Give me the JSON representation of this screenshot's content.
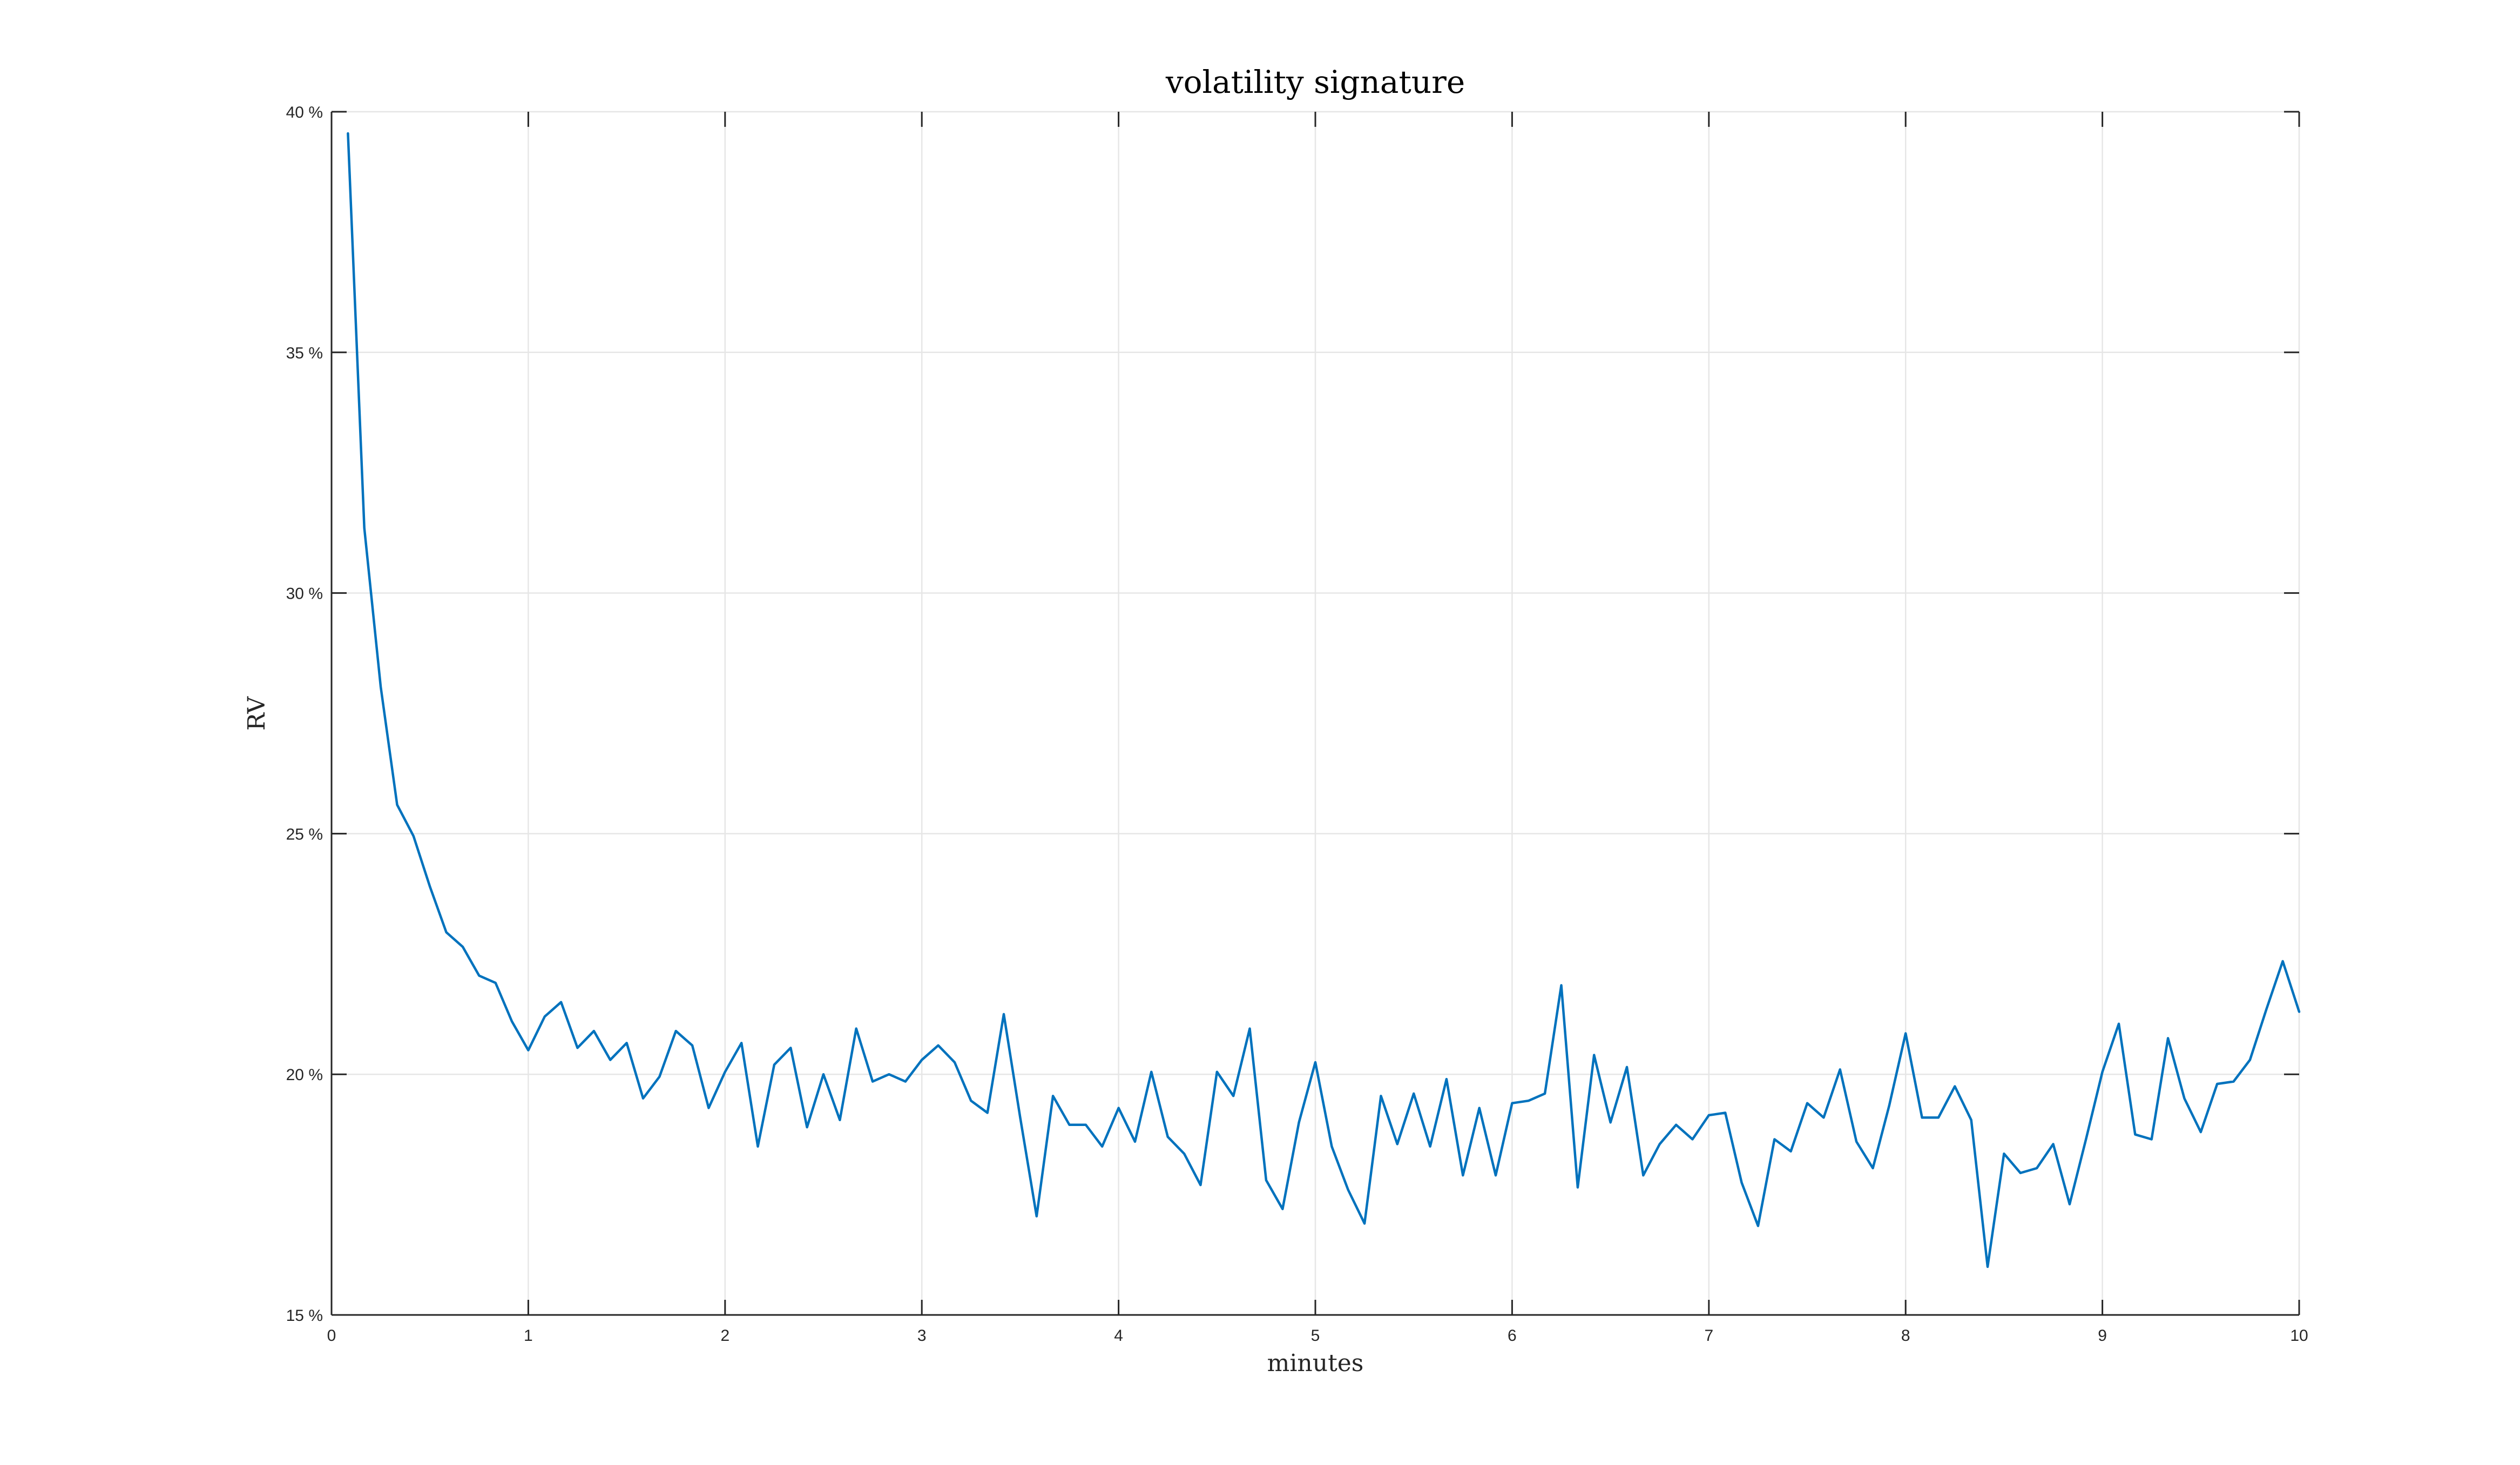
{
  "chart_data": {
    "type": "line",
    "title": "volatility signature",
    "xlabel": "minutes",
    "ylabel": "RV",
    "xlim": [
      0,
      10
    ],
    "ylim": [
      15,
      40
    ],
    "x_ticks": [
      0,
      1,
      2,
      3,
      4,
      5,
      6,
      7,
      8,
      9,
      10
    ],
    "x_tick_labels": [
      "0",
      "1",
      "2",
      "3",
      "4",
      "5",
      "6",
      "7",
      "8",
      "9",
      "10"
    ],
    "y_ticks": [
      15,
      20,
      25,
      30,
      35,
      40
    ],
    "y_tick_labels": [
      "15 %",
      "20 %",
      "25 %",
      "30 %",
      "35 %",
      "40 %"
    ],
    "grid": true,
    "series_color": "#0072BD",
    "grid_color": "#e6e6e6",
    "axis_color": "#262626",
    "series": [
      {
        "x": [
          0.0833,
          0.1667,
          0.25,
          0.3333,
          0.4167,
          0.5,
          0.5833,
          0.6667,
          0.75,
          0.8333,
          0.9167,
          1.0,
          1.0833,
          1.1667,
          1.25,
          1.3333,
          1.4167,
          1.5,
          1.5833,
          1.6667,
          1.75,
          1.8333,
          1.9167,
          2.0,
          2.0833,
          2.1667,
          2.25,
          2.3333,
          2.4167,
          2.5,
          2.5833,
          2.6667,
          2.75,
          2.8333,
          2.9167,
          3.0,
          3.0833,
          3.1667,
          3.25,
          3.3333,
          3.4167,
          3.5,
          3.5833,
          3.6667,
          3.75,
          3.8333,
          3.9167,
          4.0,
          4.0833,
          4.1667,
          4.25,
          4.3333,
          4.4167,
          4.5,
          4.5833,
          4.6667,
          4.75,
          4.8333,
          4.9167,
          5.0,
          5.0833,
          5.1667,
          5.25,
          5.3333,
          5.4167,
          5.5,
          5.5833,
          5.6667,
          5.75,
          5.8333,
          5.9167,
          6.0,
          6.0833,
          6.1667,
          6.25,
          6.3333,
          6.4167,
          6.5,
          6.5833,
          6.6667,
          6.75,
          6.8333,
          6.9167,
          7.0,
          7.0833,
          7.1667,
          7.25,
          7.3333,
          7.4167,
          7.5,
          7.5833,
          7.6667,
          7.75,
          7.8333,
          7.9167,
          8.0,
          8.0833,
          8.1667,
          8.25,
          8.3333,
          8.4167,
          8.5,
          8.5833,
          8.6667,
          8.75,
          8.8333,
          8.9167,
          9.0,
          9.0833,
          9.1667,
          9.25,
          9.3333,
          9.4167,
          9.5,
          9.5833,
          9.6667,
          9.75,
          9.8333,
          9.9167,
          10.0
        ],
        "values": [
          39.55,
          31.35,
          28.05,
          25.6,
          24.95,
          23.9,
          22.95,
          22.65,
          22.05,
          21.9,
          21.1,
          20.5,
          21.2,
          21.5,
          20.55,
          20.9,
          20.3,
          20.65,
          19.5,
          19.95,
          20.9,
          20.6,
          19.3,
          20.05,
          20.65,
          18.5,
          20.2,
          20.55,
          18.9,
          20.0,
          19.05,
          20.95,
          19.85,
          20.0,
          19.85,
          20.3,
          20.6,
          20.25,
          19.45,
          19.2,
          21.25,
          19.1,
          17.05,
          19.55,
          18.95,
          18.95,
          18.5,
          19.3,
          18.6,
          20.05,
          18.7,
          18.35,
          17.7,
          20.05,
          19.55,
          20.95,
          17.8,
          17.2,
          19.0,
          20.25,
          18.5,
          17.6,
          16.9,
          19.55,
          18.55,
          19.6,
          18.5,
          19.9,
          17.9,
          19.3,
          17.9,
          19.4,
          19.45,
          19.6,
          21.85,
          17.65,
          20.4,
          19.0,
          20.15,
          17.9,
          18.55,
          18.95,
          18.65,
          19.15,
          19.2,
          17.75,
          16.85,
          18.65,
          18.4,
          19.4,
          19.1,
          20.1,
          18.6,
          18.05,
          19.35,
          20.85,
          19.1,
          19.1,
          19.75,
          19.05,
          16.0,
          18.35,
          17.95,
          18.05,
          18.55,
          17.3,
          18.65,
          20.05,
          21.05,
          18.75,
          18.65,
          20.75,
          19.5,
          18.8,
          19.8,
          19.85,
          20.3,
          21.35,
          22.35,
          21.3
        ]
      }
    ]
  }
}
